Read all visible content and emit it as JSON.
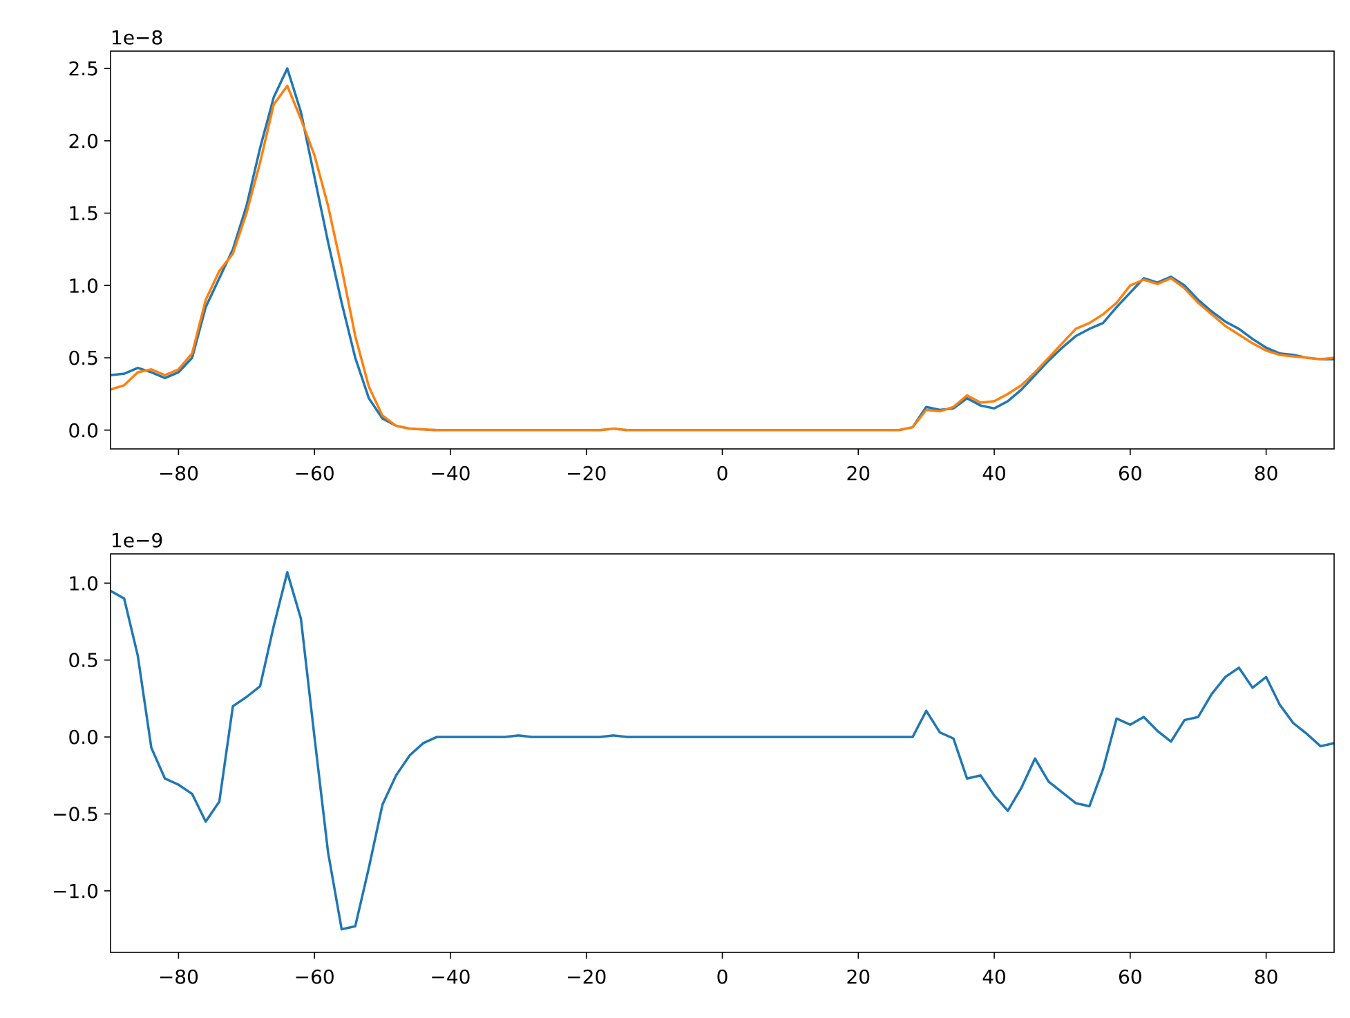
{
  "chart_data": [
    {
      "type": "line",
      "offset_text": "1e−8",
      "x": [
        -90,
        -88,
        -86,
        -84,
        -82,
        -80,
        -78,
        -76,
        -74,
        -72,
        -70,
        -68,
        -66,
        -64,
        -62,
        -60,
        -58,
        -56,
        -54,
        -52,
        -50,
        -48,
        -46,
        -44,
        -42,
        -40,
        -38,
        -36,
        -34,
        -32,
        -30,
        -28,
        -26,
        -24,
        -22,
        -20,
        -18,
        -16,
        -14,
        -12,
        -10,
        -8,
        -6,
        -4,
        -2,
        0,
        2,
        4,
        6,
        8,
        10,
        12,
        14,
        16,
        18,
        20,
        22,
        24,
        26,
        28,
        30,
        32,
        34,
        36,
        38,
        40,
        42,
        44,
        46,
        48,
        50,
        52,
        54,
        56,
        58,
        60,
        62,
        64,
        66,
        68,
        70,
        72,
        74,
        76,
        78,
        80,
        82,
        84,
        86,
        88,
        90
      ],
      "series": [
        {
          "color": "#1f77b4",
          "values": [
            0.38,
            0.39,
            0.43,
            0.4,
            0.36,
            0.4,
            0.5,
            0.85,
            1.05,
            1.25,
            1.55,
            1.95,
            2.3,
            2.5,
            2.2,
            1.75,
            1.3,
            0.88,
            0.5,
            0.22,
            0.08,
            0.03,
            0.01,
            0.005,
            0,
            0,
            0,
            0,
            0,
            0,
            0,
            0,
            0,
            0,
            0,
            0,
            0,
            0.01,
            0,
            0,
            0,
            0,
            0,
            0,
            0,
            0,
            0,
            0,
            0,
            0,
            0,
            0,
            0,
            0,
            0,
            0,
            0,
            0,
            0,
            0.02,
            0.16,
            0.14,
            0.15,
            0.22,
            0.17,
            0.15,
            0.2,
            0.28,
            0.38,
            0.48,
            0.57,
            0.65,
            0.7,
            0.74,
            0.85,
            0.95,
            1.05,
            1.02,
            1.06,
            1.0,
            0.9,
            0.82,
            0.75,
            0.7,
            0.63,
            0.57,
            0.53,
            0.52,
            0.5,
            0.49,
            0.49
          ]
        },
        {
          "color": "#ff7f0e",
          "values": [
            0.28,
            0.31,
            0.4,
            0.42,
            0.38,
            0.42,
            0.53,
            0.9,
            1.1,
            1.22,
            1.5,
            1.85,
            2.25,
            2.38,
            2.15,
            1.9,
            1.55,
            1.12,
            0.65,
            0.3,
            0.1,
            0.03,
            0.01,
            0.005,
            0,
            0,
            0,
            0,
            0,
            0,
            0,
            0,
            0,
            0,
            0,
            0,
            0,
            0.01,
            0,
            0,
            0,
            0,
            0,
            0,
            0,
            0,
            0,
            0,
            0,
            0,
            0,
            0,
            0,
            0,
            0,
            0,
            0,
            0,
            0,
            0.02,
            0.14,
            0.13,
            0.16,
            0.24,
            0.19,
            0.2,
            0.25,
            0.31,
            0.4,
            0.5,
            0.6,
            0.7,
            0.74,
            0.8,
            0.88,
            1.0,
            1.04,
            1.01,
            1.05,
            0.98,
            0.88,
            0.8,
            0.72,
            0.66,
            0.6,
            0.55,
            0.52,
            0.51,
            0.5,
            0.49,
            0.5
          ]
        }
      ],
      "xlim": [
        -90,
        90
      ],
      "xticks": [
        {
          "value": -80,
          "label": "−80"
        },
        {
          "value": -60,
          "label": "−60"
        },
        {
          "value": -40,
          "label": "−40"
        },
        {
          "value": -20,
          "label": "−20"
        },
        0,
        20,
        40,
        60,
        80
      ],
      "ylim": [
        -0.13,
        2.62
      ],
      "yticks": [
        {
          "value": 0,
          "label": "0.0"
        },
        0.5,
        {
          "value": 1,
          "label": "1.0"
        },
        1.5,
        {
          "value": 2,
          "label": "2.0"
        },
        2.5
      ]
    },
    {
      "type": "line",
      "offset_text": "1e−9",
      "x": [
        -90,
        -88,
        -86,
        -84,
        -82,
        -80,
        -78,
        -76,
        -74,
        -72,
        -70,
        -68,
        -66,
        -64,
        -62,
        -60,
        -58,
        -56,
        -54,
        -52,
        -50,
        -48,
        -46,
        -44,
        -42,
        -40,
        -38,
        -36,
        -34,
        -32,
        -30,
        -28,
        -26,
        -24,
        -22,
        -20,
        -18,
        -16,
        -14,
        -12,
        -10,
        -8,
        -6,
        -4,
        -2,
        0,
        2,
        4,
        6,
        8,
        10,
        12,
        14,
        16,
        18,
        20,
        22,
        24,
        26,
        28,
        30,
        32,
        34,
        36,
        38,
        40,
        42,
        44,
        46,
        48,
        50,
        52,
        54,
        56,
        58,
        60,
        62,
        64,
        66,
        68,
        70,
        72,
        74,
        76,
        78,
        80,
        82,
        84,
        86,
        88,
        90
      ],
      "series": [
        {
          "color": "#1f77b4",
          "values": [
            0.95,
            0.9,
            0.53,
            -0.07,
            -0.27,
            -0.31,
            -0.37,
            -0.55,
            -0.42,
            0.2,
            0.26,
            0.33,
            0.72,
            1.07,
            0.77,
            0.0,
            -0.75,
            -1.25,
            -1.23,
            -0.85,
            -0.44,
            -0.25,
            -0.12,
            -0.04,
            0.0,
            0.0,
            0,
            0,
            0,
            0,
            0.01,
            0,
            0,
            0,
            0,
            0,
            0,
            0.01,
            0,
            0,
            0,
            0,
            0,
            0,
            0,
            0,
            0,
            0,
            0,
            0,
            0,
            0,
            0,
            0,
            0,
            0,
            0,
            0,
            0,
            0.0,
            0.17,
            0.03,
            -0.01,
            -0.27,
            -0.25,
            -0.38,
            -0.48,
            -0.33,
            -0.14,
            -0.29,
            -0.36,
            -0.43,
            -0.45,
            -0.21,
            0.12,
            0.08,
            0.13,
            0.04,
            -0.03,
            0.11,
            0.13,
            0.28,
            0.39,
            0.45,
            0.32,
            0.39,
            0.21,
            0.09,
            0.02,
            -0.06,
            -0.04
          ]
        }
      ],
      "xlim": [
        -90,
        90
      ],
      "xticks": [
        {
          "value": -80,
          "label": "−80"
        },
        {
          "value": -60,
          "label": "−60"
        },
        {
          "value": -40,
          "label": "−40"
        },
        {
          "value": -20,
          "label": "−20"
        },
        0,
        20,
        40,
        60,
        80
      ],
      "ylim": [
        -1.4,
        1.19
      ],
      "yticks": [
        {
          "value": -1,
          "label": "−1.0"
        },
        {
          "value": -0.5,
          "label": "−0.5"
        },
        {
          "value": 0,
          "label": "0.0"
        },
        0.5,
        {
          "value": 1,
          "label": "1.0"
        }
      ]
    }
  ]
}
